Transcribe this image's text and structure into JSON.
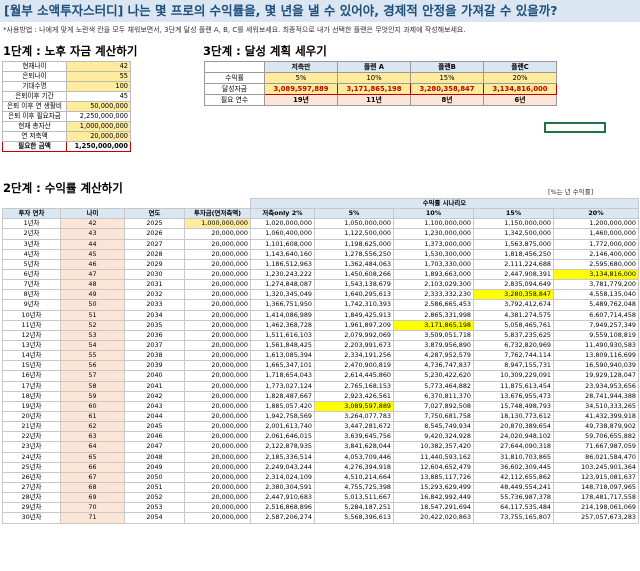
{
  "title": "[월부 소액투자스터디] 나는 몇 프로의 수익률을, 몇 년을 낼 수 있어야, 경제적 안정을 가져갈 수 있을까?",
  "note": "*사용방법 : 나에게 맞게 노란색 칸을 모두 채워보면서, 3단계 달성 플랜 A, B, C를 세워보세요. 최종적으로 내가 선택한 플랜은 무엇인지 과제에 작성해보세요.",
  "step1": {
    "heading": "1단계 : 노후 자금 계산하기",
    "rows": [
      {
        "label": "현재나이",
        "value": "42",
        "style": "yel"
      },
      {
        "label": "은퇴나이",
        "value": "55",
        "style": "yel"
      },
      {
        "label": "기대수명",
        "value": "100",
        "style": "yel"
      },
      {
        "label": "은퇴이후 기간",
        "value": "45",
        "style": ""
      },
      {
        "label": "은퇴 이후 연 생활비",
        "value": "50,000,000",
        "style": "yel"
      },
      {
        "label": "은퇴 이후 필요자금",
        "value": "2,250,000,000",
        "style": ""
      },
      {
        "label": "현재 총자산",
        "value": "1,000,000,000",
        "style": "yel"
      },
      {
        "label": "연 저축액",
        "value": "20,000,000",
        "style": "yel"
      }
    ],
    "total": {
      "label": "필요한 금액",
      "value": "1,250,000,000"
    }
  },
  "step3": {
    "heading": "3단계 : 달성 계획 세우기",
    "columns": [
      "저축만",
      "플랜 A",
      "플랜B",
      "플랜C"
    ],
    "rows": [
      {
        "label": "수익률",
        "values": [
          "5%",
          "10%",
          "15%",
          "20%"
        ]
      },
      {
        "label": "달성자금",
        "values": [
          "3,089,597,889",
          "3,171,865,198",
          "3,280,358,847",
          "3,134,816,000"
        ]
      },
      {
        "label": "필요 연수",
        "values": [
          "19년",
          "11년",
          "8년",
          "6년"
        ]
      }
    ]
  },
  "step2": {
    "heading": "2단계 : 수익률 계산하기",
    "unit_note": "[%는 년 수익률]",
    "scenario_label": "수익률 시나리오",
    "columns": [
      "투자 연차",
      "나이",
      "연도",
      "투자금(연저축액)",
      "저축only 2%",
      "5%",
      "10%",
      "15%",
      "20%"
    ],
    "rows": [
      [
        "1년차",
        "42",
        "2025",
        "1,000,000,000",
        "1,020,000,000",
        "1,050,000,000",
        "1,100,000,000",
        "1,150,000,000",
        "1,200,000,000"
      ],
      [
        "2년차",
        "43",
        "2026",
        "20,000,000",
        "1,060,400,000",
        "1,122,500,000",
        "1,230,000,000",
        "1,342,500,000",
        "1,460,000,000"
      ],
      [
        "3년차",
        "44",
        "2027",
        "20,000,000",
        "1,101,608,000",
        "1,198,625,000",
        "1,373,000,000",
        "1,563,875,000",
        "1,772,000,000"
      ],
      [
        "4년차",
        "45",
        "2028",
        "20,000,000",
        "1,143,640,160",
        "1,278,556,250",
        "1,530,300,000",
        "1,818,456,250",
        "2,146,400,000"
      ],
      [
        "5년차",
        "46",
        "2029",
        "20,000,000",
        "1,186,512,963",
        "1,362,484,063",
        "1,703,330,000",
        "2,111,224,688",
        "2,595,680,000"
      ],
      [
        "6년차",
        "47",
        "2030",
        "20,000,000",
        "1,230,243,222",
        "1,450,608,266",
        "1,893,663,000",
        "2,447,908,391",
        "3,134,816,000"
      ],
      [
        "7년차",
        "48",
        "2031",
        "20,000,000",
        "1,274,848,087",
        "1,543,138,679",
        "2,103,029,300",
        "2,835,094,649",
        "3,781,779,200"
      ],
      [
        "8년차",
        "49",
        "2032",
        "20,000,000",
        "1,320,345,049",
        "1,640,295,613",
        "2,333,332,230",
        "3,280,358,847",
        "4,558,135,040"
      ],
      [
        "9년차",
        "50",
        "2033",
        "20,000,000",
        "1,366,751,950",
        "1,742,310,393",
        "2,586,665,453",
        "3,792,412,674",
        "5,489,762,048"
      ],
      [
        "10년차",
        "51",
        "2034",
        "20,000,000",
        "1,414,086,989",
        "1,849,425,913",
        "2,865,331,998",
        "4,381,274,575",
        "6,607,714,458"
      ],
      [
        "11년차",
        "52",
        "2035",
        "20,000,000",
        "1,462,368,728",
        "1,961,897,209",
        "3,171,865,198",
        "5,058,465,761",
        "7,949,257,349"
      ],
      [
        "12년차",
        "53",
        "2036",
        "20,000,000",
        "1,511,616,103",
        "2,079,992,069",
        "3,509,051,718",
        "5,837,235,625",
        "9,559,108,819"
      ],
      [
        "13년차",
        "54",
        "2037",
        "20,000,000",
        "1,561,848,425",
        "2,203,991,673",
        "3,879,956,890",
        "6,732,820,969",
        "11,490,930,583"
      ],
      [
        "14년차",
        "55",
        "2038",
        "20,000,000",
        "1,613,085,394",
        "2,334,191,256",
        "4,287,952,579",
        "7,762,744,114",
        "13,809,116,699"
      ],
      [
        "15년차",
        "56",
        "2039",
        "20,000,000",
        "1,665,347,101",
        "2,470,900,819",
        "4,736,747,837",
        "8,947,155,731",
        "16,590,940,039"
      ],
      [
        "16년차",
        "57",
        "2040",
        "20,000,000",
        "1,718,654,043",
        "2,614,445,860",
        "5,230,422,620",
        "10,309,229,091",
        "19,929,128,047"
      ],
      [
        "17년차",
        "58",
        "2041",
        "20,000,000",
        "1,773,027,124",
        "2,765,168,153",
        "5,773,464,882",
        "11,875,613,454",
        "23,934,953,656"
      ],
      [
        "18년차",
        "59",
        "2042",
        "20,000,000",
        "1,828,487,667",
        "2,923,426,561",
        "6,370,811,370",
        "13,676,955,473",
        "28,741,944,388"
      ],
      [
        "19년차",
        "60",
        "2043",
        "20,000,000",
        "1,885,057,420",
        "3,089,597,889",
        "7,027,892,508",
        "15,748,498,793",
        "34,510,333,265"
      ],
      [
        "20년차",
        "61",
        "2044",
        "20,000,000",
        "1,942,758,569",
        "3,264,077,783",
        "7,750,681,758",
        "18,130,773,612",
        "41,432,399,918"
      ],
      [
        "21년차",
        "62",
        "2045",
        "20,000,000",
        "2,001,613,740",
        "3,447,281,672",
        "8,545,749,934",
        "20,870,389,654",
        "49,738,879,902"
      ],
      [
        "22년차",
        "63",
        "2046",
        "20,000,000",
        "2,061,646,015",
        "3,639,645,756",
        "9,420,324,928",
        "24,020,948,102",
        "59,706,655,882"
      ],
      [
        "23년차",
        "64",
        "2047",
        "20,000,000",
        "2,122,878,935",
        "3,841,628,044",
        "10,382,357,420",
        "27,644,090,318",
        "71,667,987,059"
      ],
      [
        "24년차",
        "65",
        "2048",
        "20,000,000",
        "2,185,336,514",
        "4,053,709,446",
        "11,440,593,162",
        "31,810,703,865",
        "86,021,584,470"
      ],
      [
        "25년차",
        "66",
        "2049",
        "20,000,000",
        "2,249,043,244",
        "4,276,394,918",
        "12,604,652,479",
        "36,602,309,445",
        "103,245,901,364"
      ],
      [
        "26년차",
        "67",
        "2050",
        "20,000,000",
        "2,314,024,109",
        "4,510,214,664",
        "13,885,117,726",
        "42,112,655,862",
        "123,915,081,637"
      ],
      [
        "27년차",
        "68",
        "2051",
        "20,000,000",
        "2,380,304,591",
        "4,755,725,398",
        "15,293,629,499",
        "48,449,554,241",
        "148,718,097,965"
      ],
      [
        "28년차",
        "69",
        "2052",
        "20,000,000",
        "2,447,910,683",
        "5,013,511,667",
        "16,842,992,449",
        "55,736,987,378",
        "178,481,717,558"
      ],
      [
        "29년차",
        "70",
        "2053",
        "20,000,000",
        "2,516,868,896",
        "5,284,187,251",
        "18,547,291,694",
        "64,117,535,484",
        "214,198,061,069"
      ],
      [
        "30년차",
        "71",
        "2054",
        "20,000,000",
        "2,587,206,274",
        "5,568,396,613",
        "20,422,020,863",
        "73,755,165,807",
        "257,057,673,283"
      ]
    ],
    "highlights": [
      {
        "row": 5,
        "col": 8
      },
      {
        "row": 7,
        "col": 7
      },
      {
        "row": 10,
        "col": 6
      },
      {
        "row": 18,
        "col": 5
      }
    ]
  }
}
